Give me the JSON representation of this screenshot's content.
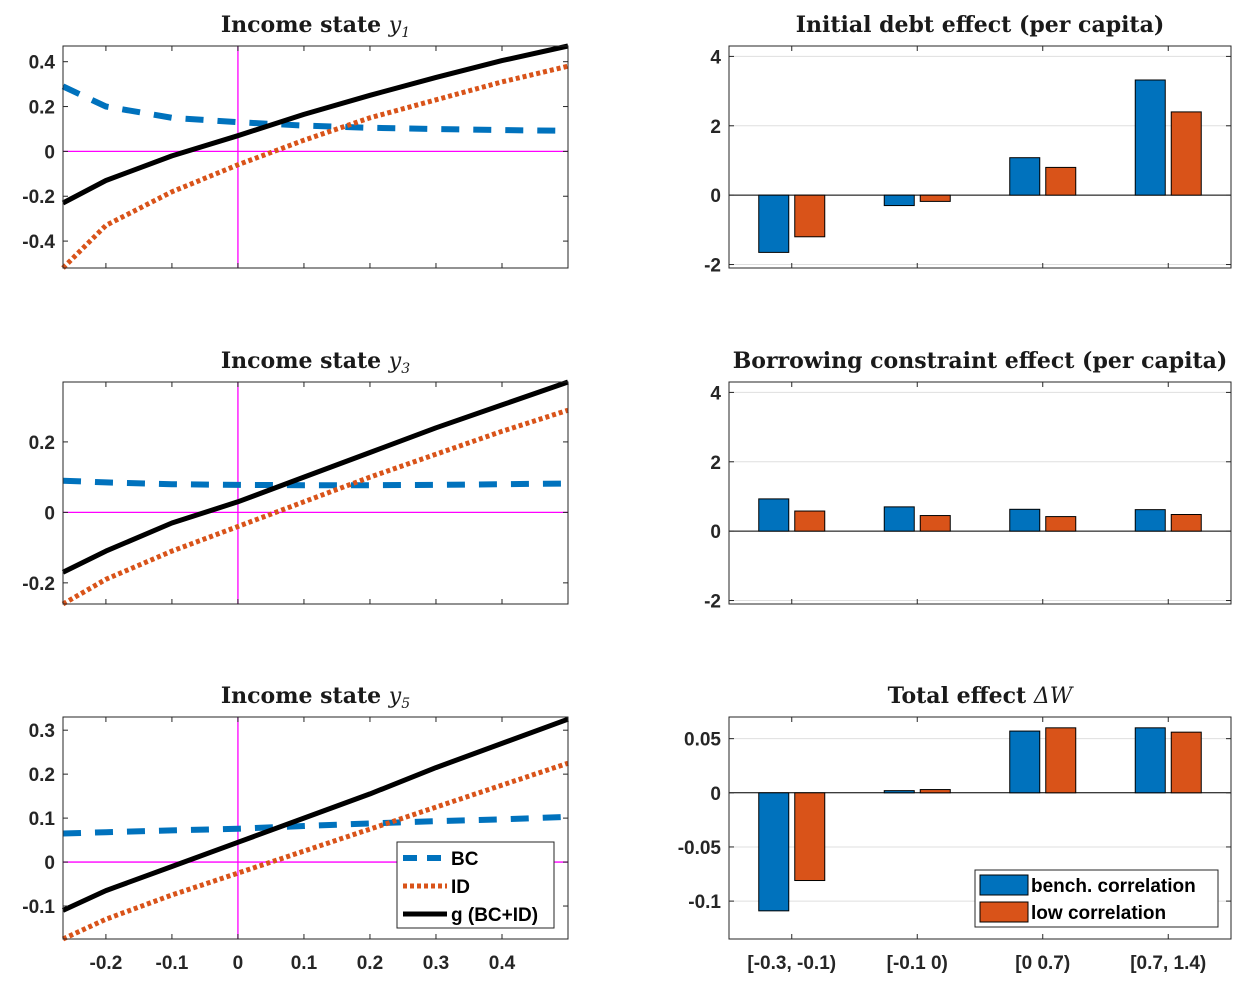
{
  "colors": {
    "bc": "#0072BD",
    "id": "#D95319",
    "g": "#000000",
    "zero_lines": "#FF00FF",
    "bench": "#0072BD",
    "low": "#D95319",
    "axes": "#262626",
    "grid": "#DFDFDF"
  },
  "chart_data": [
    {
      "type": "line",
      "title": "Income state ",
      "title_symbol": "y",
      "title_subscript": "1",
      "xlim": [
        -0.265,
        0.5
      ],
      "ylim": [
        -0.52,
        0.47
      ],
      "xticks": [
        -0.2,
        -0.1,
        0,
        0.1,
        0.2,
        0.3,
        0.4
      ],
      "xtick_labels_shown": false,
      "yticks": [
        -0.4,
        -0.2,
        0,
        0.2,
        0.4
      ],
      "ytick_labels": [
        "-0.4",
        "-0.2",
        "0",
        "0.2",
        "0.4"
      ],
      "reference_lines": {
        "x": 0,
        "y": 0
      },
      "x": [
        -0.265,
        -0.2,
        -0.1,
        0,
        0.1,
        0.2,
        0.3,
        0.4,
        0.5
      ],
      "series": [
        {
          "key": "bc",
          "style": "dashed",
          "values": [
            0.29,
            0.2,
            0.15,
            0.13,
            0.115,
            0.105,
            0.1,
            0.095,
            0.092
          ]
        },
        {
          "key": "id",
          "style": "dotted",
          "values": [
            -0.52,
            -0.33,
            -0.18,
            -0.06,
            0.05,
            0.15,
            0.23,
            0.31,
            0.38
          ]
        },
        {
          "key": "g",
          "style": "solid",
          "values": [
            -0.23,
            -0.13,
            -0.02,
            0.07,
            0.165,
            0.25,
            0.33,
            0.405,
            0.47
          ]
        }
      ]
    },
    {
      "type": "line",
      "title": "Income state ",
      "title_symbol": "y",
      "title_subscript": "3",
      "xlim": [
        -0.265,
        0.5
      ],
      "ylim": [
        -0.26,
        0.37
      ],
      "xticks": [
        -0.2,
        -0.1,
        0,
        0.1,
        0.2,
        0.3,
        0.4
      ],
      "xtick_labels_shown": false,
      "yticks": [
        -0.2,
        0,
        0.2
      ],
      "ytick_labels": [
        "-0.2",
        "0",
        "0.2"
      ],
      "reference_lines": {
        "x": 0,
        "y": 0
      },
      "x": [
        -0.265,
        -0.2,
        -0.1,
        0,
        0.1,
        0.2,
        0.3,
        0.4,
        0.5
      ],
      "series": [
        {
          "key": "bc",
          "style": "dashed",
          "values": [
            0.09,
            0.085,
            0.08,
            0.078,
            0.077,
            0.077,
            0.078,
            0.08,
            0.082
          ]
        },
        {
          "key": "id",
          "style": "dotted",
          "values": [
            -0.26,
            -0.19,
            -0.11,
            -0.04,
            0.03,
            0.1,
            0.165,
            0.23,
            0.29
          ]
        },
        {
          "key": "g",
          "style": "solid",
          "values": [
            -0.17,
            -0.11,
            -0.03,
            0.03,
            0.1,
            0.17,
            0.24,
            0.305,
            0.37
          ]
        }
      ]
    },
    {
      "type": "line",
      "title": "Income state ",
      "title_symbol": "y",
      "title_subscript": "5",
      "xlim": [
        -0.265,
        0.5
      ],
      "ylim": [
        -0.175,
        0.33
      ],
      "xticks": [
        -0.2,
        -0.1,
        0,
        0.1,
        0.2,
        0.3,
        0.4
      ],
      "xtick_labels": [
        "-0.2",
        "-0.1",
        "0",
        "0.1",
        "0.2",
        "0.3",
        "0.4"
      ],
      "xtick_labels_shown": true,
      "yticks": [
        -0.1,
        0,
        0.1,
        0.2,
        0.3
      ],
      "ytick_labels": [
        "-0.1",
        "0",
        "0.1",
        "0.2",
        "0.3"
      ],
      "reference_lines": {
        "x": 0,
        "y": 0
      },
      "x": [
        -0.265,
        -0.2,
        -0.1,
        0,
        0.1,
        0.2,
        0.3,
        0.4,
        0.5
      ],
      "series": [
        {
          "key": "bc",
          "style": "dashed",
          "values": [
            0.065,
            0.068,
            0.072,
            0.076,
            0.082,
            0.088,
            0.093,
            0.097,
            0.103
          ]
        },
        {
          "key": "id",
          "style": "dotted",
          "values": [
            -0.175,
            -0.13,
            -0.075,
            -0.025,
            0.025,
            0.075,
            0.125,
            0.175,
            0.225
          ]
        },
        {
          "key": "g",
          "style": "solid",
          "values": [
            -0.11,
            -0.065,
            -0.01,
            0.045,
            0.1,
            0.155,
            0.215,
            0.27,
            0.325
          ]
        }
      ],
      "legend": {
        "placement": "bottom-right",
        "entries": [
          {
            "key": "bc",
            "label": "BC"
          },
          {
            "key": "id",
            "label": "ID"
          },
          {
            "key": "g",
            "label": "g (BC+ID)"
          }
        ]
      }
    },
    {
      "type": "bar",
      "title": "Initial debt effect (per capita)",
      "categories": [
        "[-0.3, -0.1)",
        "[-0.1 0)",
        "[0 0.7)",
        "[0.7, 1.4)"
      ],
      "category_labels_shown": false,
      "ylim": [
        -2.1,
        4.3
      ],
      "yticks": [
        -2,
        0,
        2,
        4
      ],
      "ytick_labels": [
        "-2",
        "0",
        "2",
        "4"
      ],
      "grid": true,
      "series": [
        {
          "key": "bench",
          "values": [
            -1.65,
            -0.3,
            1.08,
            3.32
          ]
        },
        {
          "key": "low",
          "values": [
            -1.2,
            -0.18,
            0.8,
            2.4
          ]
        }
      ]
    },
    {
      "type": "bar",
      "title": "Borrowing constraint effect (per capita)",
      "categories": [
        "[-0.3, -0.1)",
        "[-0.1 0)",
        "[0 0.7)",
        "[0.7, 1.4)"
      ],
      "category_labels_shown": false,
      "ylim": [
        -2.1,
        4.3
      ],
      "yticks": [
        -2,
        0,
        2,
        4
      ],
      "ytick_labels": [
        "-2",
        "0",
        "2",
        "4"
      ],
      "grid": true,
      "series": [
        {
          "key": "bench",
          "values": [
            0.93,
            0.7,
            0.63,
            0.62
          ]
        },
        {
          "key": "low",
          "values": [
            0.58,
            0.45,
            0.42,
            0.48
          ]
        }
      ]
    },
    {
      "type": "bar",
      "title": "Total effect ",
      "title_symbol": "ΔW",
      "categories": [
        "[-0.3, -0.1)",
        "[-0.1 0)",
        "[0 0.7)",
        "[0.7, 1.4)"
      ],
      "category_labels_shown": true,
      "ylim": [
        -0.135,
        0.07
      ],
      "yticks": [
        -0.1,
        -0.05,
        0,
        0.05
      ],
      "ytick_labels": [
        "-0.1",
        "-0.05",
        "0",
        "0.05"
      ],
      "grid": true,
      "series": [
        {
          "key": "bench",
          "values": [
            -0.109,
            0.002,
            0.057,
            0.06
          ]
        },
        {
          "key": "low",
          "values": [
            -0.081,
            0.003,
            0.06,
            0.056
          ]
        }
      ],
      "legend": {
        "placement": "bottom-right",
        "entries": [
          {
            "key": "bench",
            "label": "bench. correlation"
          },
          {
            "key": "low",
            "label": "low correlation"
          }
        ]
      }
    }
  ]
}
